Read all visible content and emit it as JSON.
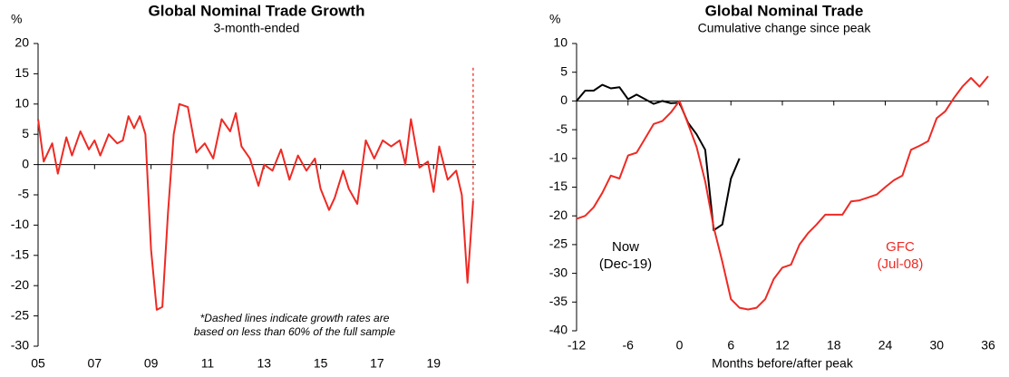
{
  "chart_data": [
    {
      "type": "line",
      "title": "Global Nominal Trade Growth",
      "subtitle": "3-month-ended",
      "y_unit": "%",
      "annotation": [
        "*Dashed lines indicate growth rates are",
        "based on less than 60% of the full sample"
      ],
      "xlim": [
        2005,
        2020.5
      ],
      "ylim": [
        -30,
        20
      ],
      "xticks": [
        {
          "value": 2005,
          "label": "05"
        },
        {
          "value": 2007,
          "label": "07"
        },
        {
          "value": 2009,
          "label": "09"
        },
        {
          "value": 2011,
          "label": "11"
        },
        {
          "value": 2013,
          "label": "13"
        },
        {
          "value": 2015,
          "label": "15"
        },
        {
          "value": 2017,
          "label": "17"
        },
        {
          "value": 2019,
          "label": "19"
        }
      ],
      "yticks": [
        -30,
        -25,
        -20,
        -15,
        -10,
        -5,
        0,
        5,
        10,
        15,
        20
      ],
      "series": [
        {
          "color": "#ee2a24",
          "dashed": false,
          "x": [
            2005.0,
            2005.2,
            2005.5,
            2005.7,
            2006.0,
            2006.2,
            2006.5,
            2006.8,
            2007.0,
            2007.2,
            2007.5,
            2007.8,
            2008.0,
            2008.2,
            2008.4,
            2008.6,
            2008.8,
            2009.0,
            2009.2,
            2009.4,
            2009.6,
            2009.8,
            2010.0,
            2010.3,
            2010.6,
            2010.9,
            2011.2,
            2011.5,
            2011.8,
            2012.0,
            2012.2,
            2012.5,
            2012.8,
            2013.0,
            2013.3,
            2013.6,
            2013.9,
            2014.2,
            2014.5,
            2014.8,
            2015.0,
            2015.3,
            2015.5,
            2015.8,
            2016.0,
            2016.3,
            2016.6,
            2016.9,
            2017.2,
            2017.5,
            2017.8,
            2018.0,
            2018.2,
            2018.5,
            2018.8,
            2019.0,
            2019.2,
            2019.5,
            2019.8,
            2020.0,
            2020.2,
            2020.4
          ],
          "values": [
            7.5,
            0.5,
            3.5,
            -1.5,
            4.5,
            1.5,
            5.5,
            2.5,
            4,
            1.5,
            5,
            3.5,
            4,
            8,
            6,
            8,
            5,
            -14,
            -24,
            -23.5,
            -8,
            5,
            10,
            9.5,
            2,
            3.5,
            1,
            7.5,
            5.5,
            8.5,
            3,
            1,
            -3.5,
            0,
            -1,
            2.5,
            -2.5,
            1.5,
            -1,
            1,
            -4,
            -7.5,
            -5.5,
            -1,
            -4,
            -6.5,
            4,
            1,
            4,
            3,
            4,
            0,
            7.5,
            -0.5,
            0.5,
            -4.5,
            3,
            -2.5,
            -1,
            -5,
            -19.5,
            -6
          ]
        },
        {
          "color": "#ee2a24",
          "dashed": true,
          "x": [
            2020.4,
            2020.4
          ],
          "values": [
            -6,
            16
          ]
        }
      ]
    },
    {
      "type": "line",
      "title": "Global Nominal Trade",
      "subtitle": "Cumulative change since peak",
      "y_unit": "%",
      "x_label": "Months before/after peak",
      "xlim": [
        -12,
        36
      ],
      "ylim": [
        -40,
        10
      ],
      "xticks": [
        -12,
        -6,
        0,
        6,
        12,
        18,
        24,
        30,
        36
      ],
      "yticks": [
        -40,
        -35,
        -30,
        -25,
        -20,
        -15,
        -10,
        -5,
        0,
        5,
        10
      ],
      "series": [
        {
          "name": "Now",
          "label_lines": [
            "Now",
            "(Dec-19)"
          ],
          "color": "#000000",
          "dashed": false,
          "x": [
            -12,
            -11,
            -10,
            -9,
            -8,
            -7,
            -6,
            -5,
            -4,
            -3,
            -2,
            -1,
            0,
            1,
            2,
            3,
            4,
            5,
            6,
            7
          ],
          "values": [
            0,
            1.8,
            1.8,
            2.8,
            2.2,
            2.4,
            0.3,
            1.1,
            0.3,
            -0.5,
            0,
            -0.4,
            -0.3,
            -3.8,
            -5.8,
            -8.5,
            -22.5,
            -21.5,
            -13.5,
            -10
          ]
        },
        {
          "name": "GFC",
          "label_lines": [
            "GFC",
            "(Jul-08)"
          ],
          "color": "#ee2a24",
          "dashed": false,
          "x": [
            -12,
            -11,
            -10,
            -9,
            -8,
            -7,
            -6,
            -5,
            -4,
            -3,
            -2,
            -1,
            0,
            1,
            2,
            3,
            4,
            5,
            6,
            7,
            8,
            9,
            10,
            11,
            12,
            13,
            14,
            15,
            16,
            17,
            18,
            19,
            20,
            21,
            22,
            23,
            24,
            25,
            26,
            27,
            28,
            29,
            30,
            31,
            32,
            33,
            34,
            35,
            36
          ],
          "values": [
            -20.5,
            -20,
            -18.5,
            -16,
            -13,
            -13.5,
            -9.5,
            -9,
            -6.5,
            -4,
            -3.5,
            -2,
            0,
            -4,
            -8,
            -14,
            -22,
            -28,
            -34.5,
            -36,
            -36.3,
            -36,
            -34.5,
            -31,
            -29,
            -28.5,
            -25,
            -23,
            -21.5,
            -19.8,
            -19.8,
            -19.8,
            -17.5,
            -17.3,
            -16.8,
            -16.3,
            -15,
            -13.8,
            -13,
            -8.5,
            -7.8,
            -7,
            -3,
            -1.8,
            0.5,
            2.5,
            4,
            2.5,
            4.3
          ]
        }
      ]
    }
  ]
}
